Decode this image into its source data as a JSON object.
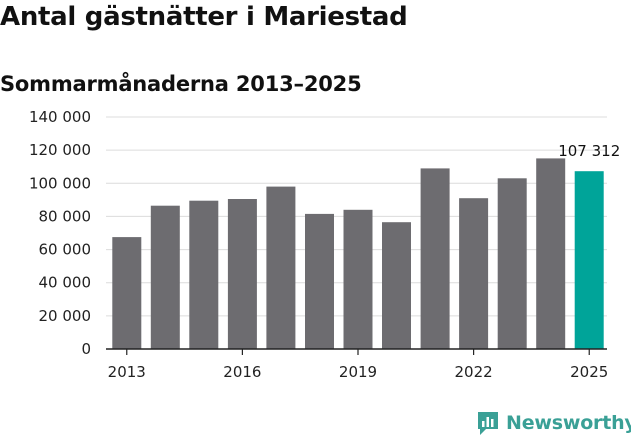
{
  "title": "Antal gästnätter i Mariestad",
  "subtitle": "Sommarmånaderna 2013–2025",
  "brand": {
    "name": "Newsworthy",
    "color": "#3aa096",
    "icon": "newsworthy-chart-logo-icon"
  },
  "colors": {
    "bar": "#6d6c70",
    "highlight": "#00a499",
    "grid": "#dcdcdc",
    "axis": "#222222"
  },
  "chart_data": {
    "type": "bar",
    "categories": [
      "2013",
      "2014",
      "2015",
      "2016",
      "2017",
      "2018",
      "2019",
      "2020",
      "2021",
      "2022",
      "2023",
      "2024",
      "2025"
    ],
    "values": [
      67500,
      86500,
      89500,
      90500,
      98000,
      81500,
      84000,
      76500,
      109000,
      91000,
      103000,
      115000,
      107312
    ],
    "highlight_index": 12,
    "data_labels": [
      {
        "index": 12,
        "text": "107 312"
      }
    ],
    "ylim": [
      0,
      140000
    ],
    "yticks": [
      0,
      20000,
      40000,
      60000,
      80000,
      100000,
      120000,
      140000
    ],
    "ytick_labels": [
      "0",
      "20 000",
      "40 000",
      "60 000",
      "80 000",
      "100 000",
      "120 000",
      "140 000"
    ],
    "xtick_labels": [
      "2013",
      "2016",
      "2019",
      "2022",
      "2025"
    ],
    "xlabel": "",
    "ylabel": "",
    "grid": true,
    "legend": "none"
  }
}
